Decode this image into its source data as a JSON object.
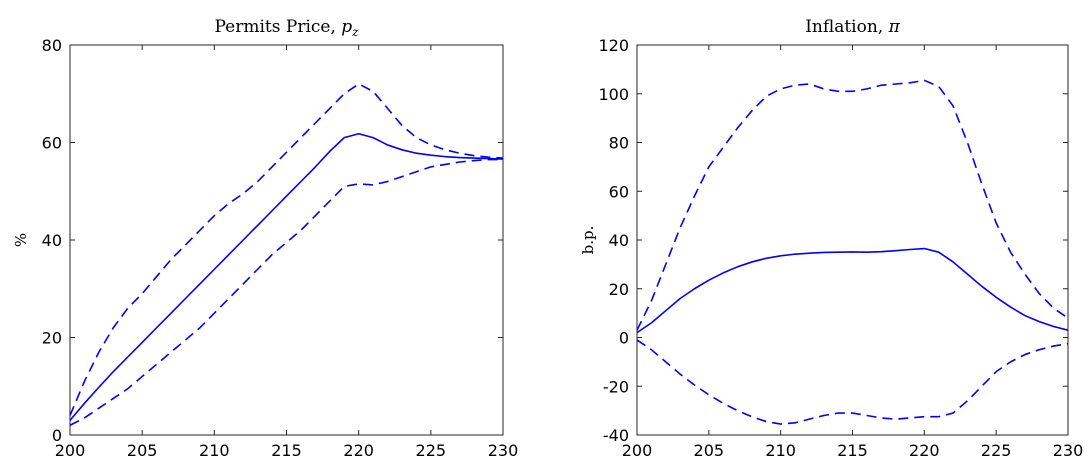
{
  "chart_data": [
    {
      "type": "line",
      "title": "Permits Price, ",
      "title_symbol": "p",
      "title_subscript": "z",
      "ylabel": "%",
      "x": [
        200,
        201,
        202,
        203,
        204,
        205,
        206,
        207,
        208,
        209,
        210,
        211,
        212,
        213,
        214,
        215,
        216,
        217,
        218,
        219,
        220,
        221,
        222,
        223,
        224,
        225,
        226,
        227,
        228,
        229,
        230
      ],
      "xlim": [
        200,
        230
      ],
      "xticks": [
        200,
        205,
        210,
        215,
        220,
        225,
        230
      ],
      "ylim": [
        0,
        80
      ],
      "yticks": [
        0,
        20,
        40,
        60,
        80
      ],
      "series": [
        {
          "color": "#0000ff",
          "style": "solid",
          "values": [
            3,
            6.5,
            9.8,
            13,
            16,
            19,
            22,
            25,
            28,
            31,
            34,
            37,
            40,
            43,
            46,
            49,
            52,
            55,
            58.2,
            61,
            61.8,
            61,
            59.5,
            58.5,
            57.8,
            57.4,
            57.1,
            56.9,
            56.8,
            56.7,
            56.6
          ]
        },
        {
          "color": "#0000ff",
          "style": "dashed",
          "values": [
            4,
            11,
            17,
            22,
            26,
            29,
            32.5,
            36,
            39,
            42,
            45,
            47.5,
            49.5,
            52,
            55,
            58,
            61,
            64,
            67,
            70,
            72,
            70.5,
            67,
            63.5,
            61,
            59.5,
            58.5,
            57.8,
            57.3,
            57,
            56.8
          ]
        },
        {
          "color": "#0000ff",
          "style": "dashed",
          "values": [
            2,
            3.5,
            5.5,
            7.5,
            9.5,
            12,
            14.5,
            17,
            19.5,
            22,
            25,
            28,
            31,
            34,
            37,
            39.5,
            42,
            45,
            48,
            51,
            51.5,
            51.3,
            52,
            53,
            54,
            55,
            55.5,
            56,
            56.3,
            56.5,
            56.5
          ]
        }
      ]
    },
    {
      "type": "line",
      "title": "Inflation, ",
      "title_symbol": "π",
      "ylabel": "b.p.",
      "x": [
        200,
        201,
        202,
        203,
        204,
        205,
        206,
        207,
        208,
        209,
        210,
        211,
        212,
        213,
        214,
        215,
        216,
        217,
        218,
        219,
        220,
        221,
        222,
        223,
        224,
        225,
        226,
        227,
        228,
        229,
        230
      ],
      "xlim": [
        200,
        230
      ],
      "xticks": [
        200,
        205,
        210,
        215,
        220,
        225,
        230
      ],
      "ylim": [
        -40,
        120
      ],
      "yticks": [
        -40,
        -20,
        0,
        20,
        40,
        60,
        80,
        100,
        120
      ],
      "series": [
        {
          "color": "#0000ff",
          "style": "solid",
          "values": [
            2,
            6,
            11,
            16,
            20,
            23.5,
            26.5,
            29,
            31,
            32.5,
            33.5,
            34.2,
            34.6,
            34.9,
            35,
            35.1,
            35,
            35.2,
            35.6,
            36.1,
            36.5,
            35,
            31,
            26,
            21,
            16.5,
            12.5,
            9,
            6.5,
            4.5,
            3
          ]
        },
        {
          "color": "#0000ff",
          "style": "dashed",
          "values": [
            3,
            15,
            30,
            45,
            58,
            70,
            78,
            86,
            93,
            99,
            102,
            103.5,
            104,
            102,
            101,
            101,
            102,
            103.5,
            104,
            104.5,
            105.5,
            103,
            95,
            80,
            63,
            47,
            35,
            26,
            18,
            12,
            8
          ]
        },
        {
          "color": "#0000ff",
          "style": "dashed",
          "values": [
            -1,
            -5,
            -10,
            -15,
            -19.5,
            -23.5,
            -27,
            -30,
            -32.5,
            -34.5,
            -35.5,
            -35,
            -33.5,
            -32,
            -31,
            -31,
            -32,
            -33,
            -33.5,
            -33,
            -32.5,
            -32.5,
            -31,
            -26,
            -20,
            -14,
            -10,
            -7,
            -5,
            -3.5,
            -2.5
          ]
        }
      ]
    }
  ]
}
